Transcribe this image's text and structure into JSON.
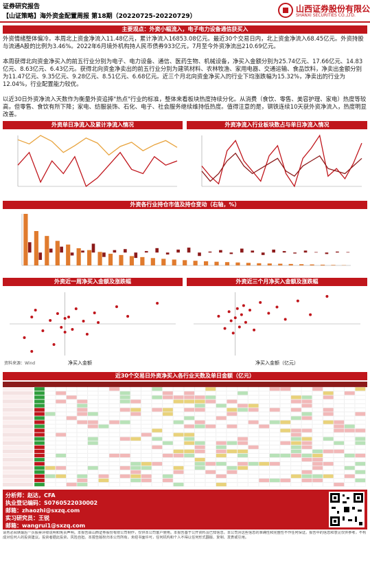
{
  "header": {
    "report_type": "证券研究报告",
    "title": "【山证策略】海外资金配置周报 第18期（20220725-20220729）",
    "logo_cn": "山西证券股份有限公司",
    "logo_en": "SHANXI SECURITIES CO.,LTD."
  },
  "key_view": "主要观点：外资小幅流入，电子电力设备通信获买入",
  "paragraphs": [
    "外资情绪整体偏冷。本周北上资金净流入11.48亿元，累计净流入16853.08亿元。最近30个交易日内，北上资金净流入68.45亿元。外资持股与流通A股的比例为3.46%。2022年6月境外机构持人民币债券933亿元，7月至今外资净流出210.69亿元。",
    "本周获得北向资金净买入的前五行业分别为电子、电力设备、通信、医药生物、机械设备，净买入金额分别为25.74亿元、17.66亿元、14.83亿元、8.63亿元、6.43亿元。获得北向资金净卖出的前五行业分别为建筑材料、农林牧渔、家用电器、交通运输、食品饮料，净卖出金额分别为11.47亿元、9.35亿元、9.28亿元、8.51亿元、6.68亿元。近三个月北向资金净买入的行业下均涨跌幅为15.32%，净卖出的行业为12.04%，行业配置能力较优。",
    "以近30日外资净流入天数作为衡量外资追捧\"热点\"行业的标准，整体来看板块热度持续分化。从消费（食饮、零售、美容护理、家电）热度等较高，但零售、食饮有所下降；家电、纺服装饰、石化、电子、社会服务继续维持低热度。值得注意的是，钢铁连续10天获外资净流入，热度明显改善。"
  ],
  "sections": {
    "s1": "外资单日净流入及累计净流入情况",
    "s2": "外资净流入行业板块数占与单日净流入情况",
    "s3": "外资各行业持仓市值及持仓变动（右轴，%）",
    "s4": "外资近一周净买入金额及涨跌幅",
    "s5": "外资近三个月净买入金额及涨跌幅",
    "s6": "近30个交易日外资净买入各行业天数及单日金额（亿元）"
  },
  "axis_labels": {
    "s4_x": "净买入金额",
    "s5_x": "净买入金额（亿元）",
    "source": "资料来源：Wind"
  },
  "chart_data": [
    {
      "type": "line",
      "title": "外资单日净流入及累计净流入情况",
      "series": [
        {
          "values": [
            -20,
            -5,
            -40,
            -15,
            -30,
            -10,
            -45,
            -35,
            -20,
            -5,
            -25,
            -30,
            -10,
            -20,
            -15
          ]
        },
        {
          "values": [
            10,
            5,
            15,
            8,
            -5,
            3,
            12,
            6,
            -8,
            2,
            7,
            -3,
            4,
            9,
            1
          ]
        }
      ]
    },
    {
      "type": "line",
      "title": "外资净流入行业板块数占与单日净流入情况",
      "series": [
        {
          "values": [
            12,
            8,
            5,
            18,
            22,
            14,
            10,
            6,
            16,
            20,
            9,
            4,
            15,
            19,
            24,
            8,
            11,
            7,
            13,
            21
          ]
        },
        {
          "values": [
            10,
            6,
            9,
            14,
            17,
            12,
            9,
            11,
            13,
            15,
            10,
            8,
            12,
            14,
            16,
            11,
            10,
            9,
            12,
            15
          ]
        }
      ]
    },
    {
      "type": "bar",
      "title": "外资各行业持仓市值及持仓变动（右轴，%）",
      "values": [
        4200,
        2800,
        2400,
        2000,
        1700,
        1400,
        1250,
        1100,
        950,
        850,
        760,
        680,
        600,
        540,
        480,
        430,
        380,
        340,
        300,
        270,
        240,
        210,
        180,
        160,
        140,
        120,
        100,
        80,
        60,
        40,
        20
      ],
      "values2": [
        2.1,
        -1.5,
        0.8,
        1.2,
        -0.6,
        0.4,
        1.8,
        -0.9,
        0.5,
        0.7,
        -1.1,
        0.3,
        0.9,
        -0.4,
        0.6,
        1.0,
        -0.7,
        0.2,
        0.5,
        -0.3,
        0.8,
        0.4,
        -0.5,
        0.6,
        0.3,
        -0.2,
        0.4,
        0.1,
        -0.3,
        0.2,
        0.1
      ]
    },
    {
      "type": "scatter",
      "title": "外资近一周净买入金额及涨跌幅",
      "points": [
        [
          -11,
          -2
        ],
        [
          -9,
          1
        ],
        [
          -9,
          -4
        ],
        [
          -8,
          2
        ],
        [
          -6,
          -1
        ],
        [
          -4,
          0.5
        ],
        [
          -3,
          -3
        ],
        [
          -2,
          1.5
        ],
        [
          -1,
          -0.5
        ],
        [
          0,
          0.8
        ],
        [
          0,
          -1.2
        ],
        [
          1,
          1
        ],
        [
          2,
          -0.8
        ],
        [
          3,
          2.2
        ],
        [
          5,
          0.4
        ],
        [
          6,
          -1.5
        ],
        [
          8,
          1.6
        ],
        [
          9,
          0.2
        ],
        [
          14,
          2.5
        ],
        [
          17,
          1.1
        ],
        [
          25,
          3.0
        ]
      ],
      "xlim": [
        -15,
        30
      ]
    },
    {
      "type": "scatter",
      "title": "外资近三个月净买入金额及涨跌幅",
      "points": [
        [
          -40,
          5
        ],
        [
          -25,
          -3
        ],
        [
          -15,
          8
        ],
        [
          -10,
          2
        ],
        [
          -5,
          -6
        ],
        [
          0,
          4
        ],
        [
          5,
          10
        ],
        [
          10,
          -2
        ],
        [
          15,
          6
        ],
        [
          20,
          12
        ],
        [
          25,
          1
        ],
        [
          35,
          9
        ],
        [
          45,
          -4
        ],
        [
          60,
          14
        ],
        [
          80,
          7
        ],
        [
          100,
          11
        ],
        [
          120,
          3
        ],
        [
          150,
          15
        ],
        [
          180,
          6
        ],
        [
          220,
          18
        ]
      ],
      "xlim": [
        -100,
        300
      ]
    }
  ],
  "table": {
    "title": "近30个交易日外资净买入各行业天数及单日金额（亿元）"
  },
  "footer": {
    "analyst": "分析师：赵达，CFA",
    "cert": "执业登记编码：S0760522030002",
    "email": "邮箱：zhaozhi@sxzq.com",
    "contact": "实习研究员：王锐",
    "contact_email": "邮箱：wangrui1@sxzq.com"
  },
  "disclaimer": "请务必阅读最后一页股票评级说明和免责声明。本报告由山西证券股份有限公司制作，仅供本公司客户使用。本报告基于公开资料及已知信息，本公司对这些信息的准确性和完整性不作任何保证。报告中的信息和意见仅供参考，不构成对任何人的投资建议。投资者据此投资，风险自担。本报告版权归本公司所有，未经书面许可，任何机构和个人不得以任何形式翻版、复制、发表或引用。"
}
